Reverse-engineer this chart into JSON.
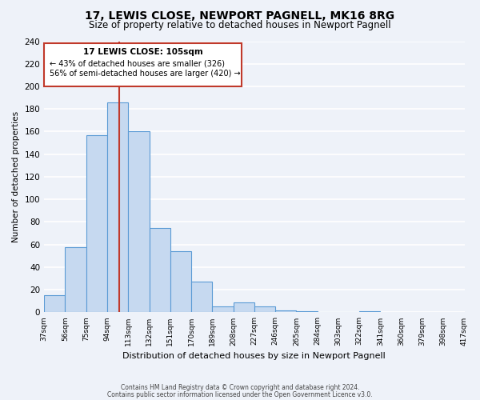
{
  "title": "17, LEWIS CLOSE, NEWPORT PAGNELL, MK16 8RG",
  "subtitle": "Size of property relative to detached houses in Newport Pagnell",
  "xlabel": "Distribution of detached houses by size in Newport Pagnell",
  "ylabel": "Number of detached properties",
  "bar_values": [
    15,
    58,
    157,
    186,
    160,
    75,
    54,
    27,
    5,
    9,
    5,
    2,
    1,
    0,
    0,
    1
  ],
  "bin_labels": [
    "37sqm",
    "56sqm",
    "75sqm",
    "94sqm",
    "113sqm",
    "132sqm",
    "151sqm",
    "170sqm",
    "189sqm",
    "208sqm",
    "227sqm",
    "246sqm",
    "265sqm",
    "284sqm",
    "303sqm",
    "322sqm",
    "341sqm",
    "360sqm",
    "379sqm",
    "398sqm",
    "417sqm"
  ],
  "bin_edges": [
    37,
    56,
    75,
    94,
    113,
    132,
    151,
    170,
    189,
    208,
    227,
    246,
    265,
    284,
    303,
    322,
    341,
    360,
    379,
    398,
    417
  ],
  "bar_color": "#c6d9f0",
  "bar_edge_color": "#5b9bd5",
  "property_line_x": 105,
  "property_line_color": "#c0392b",
  "ylim": [
    0,
    240
  ],
  "yticks": [
    0,
    20,
    40,
    60,
    80,
    100,
    120,
    140,
    160,
    180,
    200,
    220,
    240
  ],
  "annotation_title": "17 LEWIS CLOSE: 105sqm",
  "annotation_line1": "← 43% of detached houses are smaller (326)",
  "annotation_line2": "56% of semi-detached houses are larger (420) →",
  "annotation_box_color": "#ffffff",
  "annotation_box_edge": "#c0392b",
  "footer_line1": "Contains HM Land Registry data © Crown copyright and database right 2024.",
  "footer_line2": "Contains public sector information licensed under the Open Government Licence v3.0.",
  "background_color": "#eef2f9",
  "grid_color": "#ffffff",
  "title_fontsize": 10,
  "subtitle_fontsize": 8.5
}
